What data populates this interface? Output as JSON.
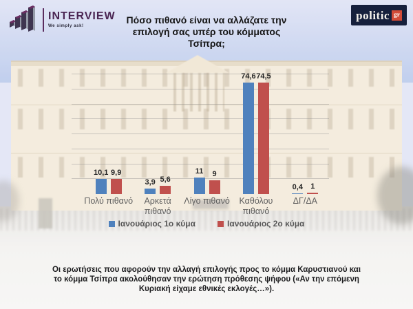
{
  "header": {
    "interview": {
      "name": "INTERVIEW",
      "tagline": "We simply ask!"
    },
    "politic": {
      "text": "politic",
      "badge": "gr"
    }
  },
  "chart_data": {
    "type": "bar",
    "title": "Πόσο πιθανό είναι να αλλάζατε την επιλογή σας υπέρ του κόμματος Τσίπρα;",
    "categories": [
      "Πολύ πιθανό",
      "Αρκετά πιθανό",
      "Λίγο πιθανό",
      "Καθόλου πιθανό",
      "ΔΓ/ΔΑ"
    ],
    "series": [
      {
        "name": "Ιανουάριος 1ο κύμα",
        "color": "#4f81bd",
        "values": [
          10.1,
          3.9,
          11,
          74.6,
          0.4
        ],
        "value_labels": [
          "10,1",
          "3,9",
          "11",
          "74,6",
          "0,4"
        ]
      },
      {
        "name": "Ιανουάριος 2ο κύμα",
        "color": "#c0504d",
        "values": [
          9.9,
          5.6,
          9,
          74.5,
          1
        ],
        "value_labels": [
          "9,9",
          "5,6",
          "9",
          "74,5",
          "1"
        ]
      }
    ],
    "ylim": [
      0,
      80
    ],
    "gridline_step": 10,
    "grid": true,
    "legend_position": "bottom"
  },
  "footnote": "Οι ερωτήσεις που αφορούν την αλλαγή επιλογής προς το κόμμα Καρυστιανού και το κόμμα Τσίπρα ακολούθησαν την ερώτηση πρόθεσης ψήφου («Αν την επόμενη Κυριακή είχαμε εθνικές εκλογές…»)."
}
